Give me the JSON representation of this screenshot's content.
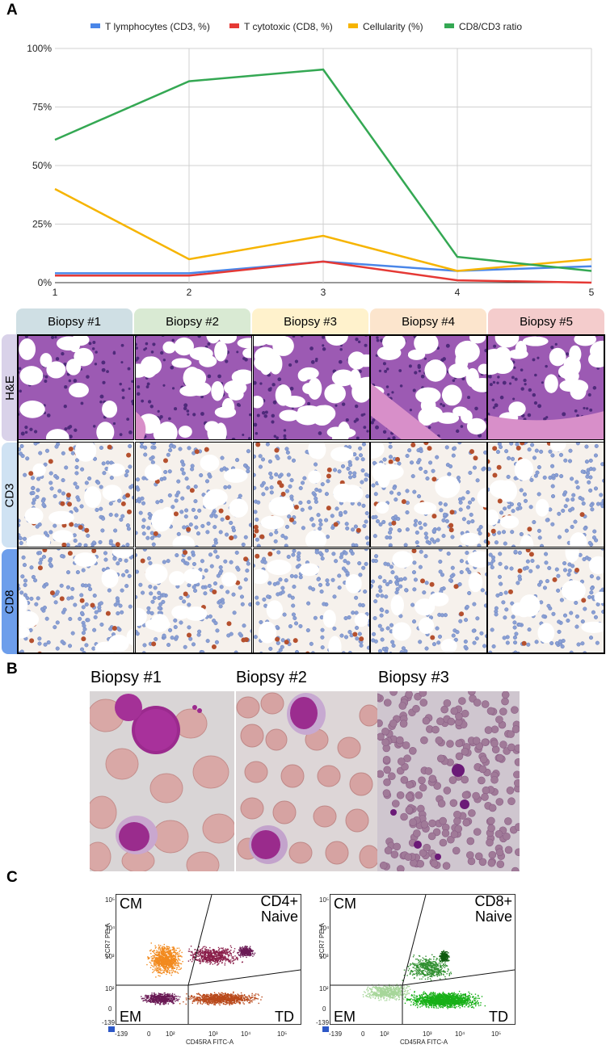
{
  "panels": {
    "a": "A",
    "b": "B",
    "c": "C"
  },
  "chart_data": {
    "type": "line",
    "x": [
      1,
      2,
      3,
      4,
      5
    ],
    "ylim": [
      0,
      100
    ],
    "yticks": [
      "0%",
      "25%",
      "50%",
      "75%",
      "100%"
    ],
    "xticks": [
      "1",
      "2",
      "3",
      "4",
      "5"
    ],
    "grid": true,
    "legend_position": "top",
    "series": [
      {
        "name": "T lymphocytes (CD3, %)",
        "color": "#4a86e8",
        "values": [
          4,
          4,
          9,
          5,
          7
        ]
      },
      {
        "name": "T cytotoxic (CD8, %)",
        "color": "#e53935",
        "values": [
          3,
          3,
          9,
          1,
          0
        ]
      },
      {
        "name": "Cellularity (%)",
        "color": "#f6b400",
        "values": [
          40,
          10,
          20,
          5,
          10
        ]
      },
      {
        "name": "CD8/CD3 ratio",
        "color": "#34a853",
        "values": [
          61,
          86,
          91,
          11,
          5
        ]
      }
    ]
  },
  "biopsy_headers": [
    {
      "label": "Biopsy #1",
      "color": "#cfdfe4"
    },
    {
      "label": "Biopsy #2",
      "color": "#d9ead3"
    },
    {
      "label": "Biopsy #3",
      "color": "#fff2cc"
    },
    {
      "label": "Biopsy #4",
      "color": "#fce5cd"
    },
    {
      "label": "Biopsy #5",
      "color": "#f4cccc"
    }
  ],
  "stain_rows": [
    {
      "label": "H&E",
      "color": "#d9d2e9"
    },
    {
      "label": "CD3",
      "color": "#cfe2f3"
    },
    {
      "label": "CD8",
      "color": "#6d9eeb"
    }
  ],
  "smear_labels": [
    "Biopsy #1",
    "Biopsy #2",
    "Biopsy #3"
  ],
  "flow_plots": [
    {
      "title_line1": "CD4+",
      "title_line2": "Naive",
      "q_cm": "CM",
      "q_em": "EM",
      "q_td": "TD",
      "y_axis": "CCR7 PE-A",
      "x_axis": "CD45RA FITC-A",
      "xticks": [
        "-139",
        "0",
        "10²",
        "10³",
        "10⁴",
        "10⁵"
      ],
      "yticks": [
        "-139",
        "0",
        "10²",
        "10³",
        "10⁴",
        "10⁵"
      ]
    },
    {
      "title_line1": "CD8+",
      "title_line2": "Naive",
      "q_cm": "CM",
      "q_em": "EM",
      "q_td": "TD",
      "y_axis": "CCR7 PE-A",
      "x_axis": "CD45RA FITC-A",
      "xticks": [
        "-139",
        "0",
        "10²",
        "10³",
        "10⁴",
        "10⁵"
      ],
      "yticks": [
        "-139",
        "0",
        "10²",
        "10³",
        "10⁴",
        "10⁵"
      ]
    }
  ]
}
